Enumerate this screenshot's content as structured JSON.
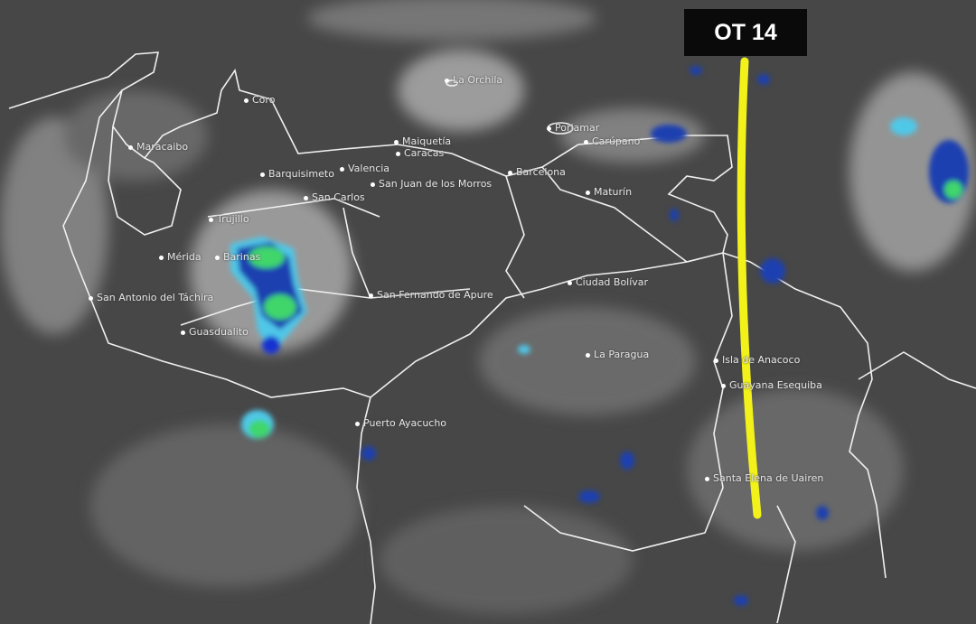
{
  "overlay": {
    "label": "OT 14",
    "line_color": "#f2f21a",
    "label_bg": "#0a0a0a"
  },
  "cities": [
    {
      "name": "Coro"
    },
    {
      "name": "La Orchila"
    },
    {
      "name": "Maracaibo"
    },
    {
      "name": "Maiquetía"
    },
    {
      "name": "Caracas"
    },
    {
      "name": "Barquisimeto"
    },
    {
      "name": "Valencia"
    },
    {
      "name": "San Juan de los Morros"
    },
    {
      "name": "San Carlos"
    },
    {
      "name": "Trujillo"
    },
    {
      "name": "Mérida"
    },
    {
      "name": "Barinas"
    },
    {
      "name": "San Antonio del Táchira"
    },
    {
      "name": "Guasdualito"
    },
    {
      "name": "San Fernando de Apure"
    },
    {
      "name": "Porlamar"
    },
    {
      "name": "Carúpano"
    },
    {
      "name": "Barcelona"
    },
    {
      "name": "Maturín"
    },
    {
      "name": "Ciudad Bolívar"
    },
    {
      "name": "La Paragua"
    },
    {
      "name": "Puerto Ayacucho"
    },
    {
      "name": "Isla de Anacoco"
    },
    {
      "name": "Guayana Esequiba"
    },
    {
      "name": "Santa Elena de Uairen"
    }
  ],
  "colors": {
    "background": "#454545",
    "borders": "#f0f0f0",
    "storm_cold": "#1a3fb0",
    "storm_mid": "#3fd66a",
    "storm_edge": "#4fc8e8"
  }
}
